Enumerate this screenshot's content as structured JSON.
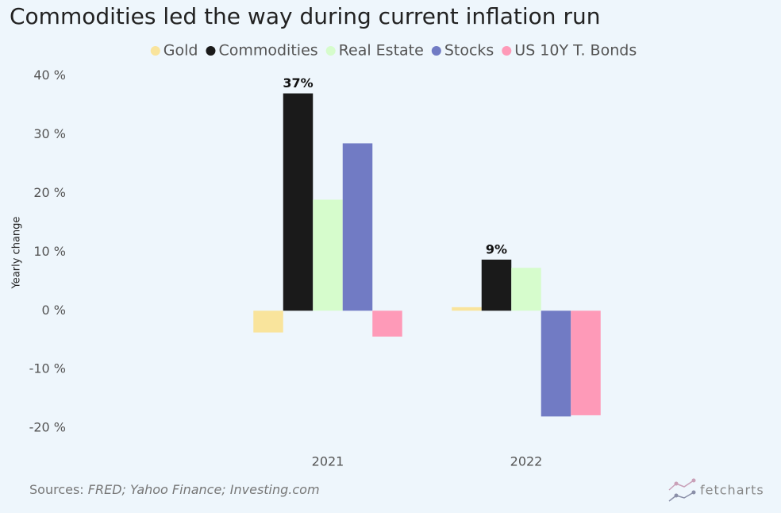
{
  "chart_data": {
    "type": "bar",
    "title": "Commodities led the way during current inflation run",
    "y_label": "Yearly change",
    "source_label": "Sources:",
    "source": "FRED; Yahoo Finance; Investing.com",
    "brand": "fetcharts",
    "categories": [
      "2021",
      "2022"
    ],
    "series": [
      {
        "name": "Gold",
        "color": "#f9e49c",
        "values": [
          -3.7,
          0.6
        ]
      },
      {
        "name": "Commodities",
        "color": "#1a1a1a",
        "values": [
          37,
          8.7
        ],
        "value_labels": [
          "37%",
          "9%"
        ]
      },
      {
        "name": "Real Estate",
        "color": "#d6fccc",
        "values": [
          18.9,
          7.3
        ]
      },
      {
        "name": "Stocks",
        "color": "#717bc4",
        "values": [
          28.5,
          -18
        ]
      },
      {
        "name": "US 10Y T. Bonds",
        "color": "#fe9ab8",
        "values": [
          -4.4,
          -17.8
        ]
      }
    ],
    "ylim": [
      -22,
      40
    ],
    "yticks": [
      {
        "value": -20,
        "label": "-20 %"
      },
      {
        "value": -10,
        "label": "-10 %"
      },
      {
        "value": 0,
        "label": "0 %"
      },
      {
        "value": 10,
        "label": "10 %"
      },
      {
        "value": 20,
        "label": "20 %"
      },
      {
        "value": 30,
        "label": "30 %"
      },
      {
        "value": 40,
        "label": "40 %"
      }
    ],
    "grid": false,
    "legend": "top"
  }
}
